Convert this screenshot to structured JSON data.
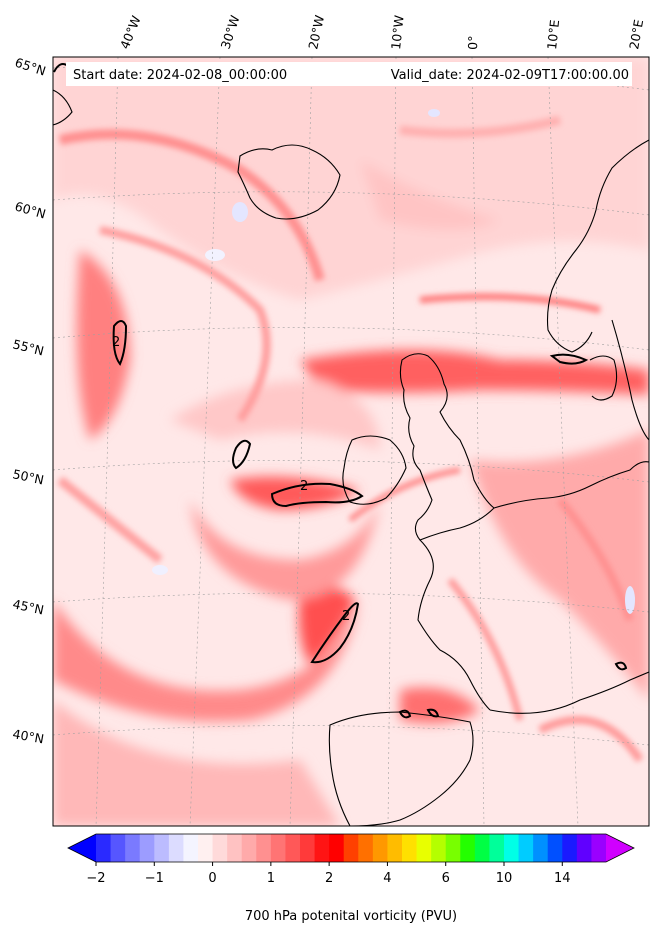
{
  "header": {
    "start_date": "Start date: 2024-02-08_00:00:00",
    "valid_date": "Valid_date: 2024-02-09T17:00:00.00"
  },
  "lon_labels": [
    "40°W",
    "30°W",
    "20°W",
    "10°W",
    "0°",
    "10°E",
    "20°E"
  ],
  "lat_labels": [
    "65°N",
    "60°N",
    "55°N",
    "50°N",
    "45°N",
    "40°N"
  ],
  "contour_label": "2",
  "colorbar": {
    "label": "700 hPa potenital vorticity (PVU)",
    "tick_labels": [
      "−2",
      "−1",
      "0",
      "1",
      "2",
      "4",
      "6",
      "10",
      "14"
    ],
    "colors": [
      "#0000ff",
      "#2a2aff",
      "#5656ff",
      "#7a7aff",
      "#9c9cff",
      "#bcbcff",
      "#dcdcff",
      "#f4f4ff",
      "#fff0f0",
      "#ffdada",
      "#ffc2c2",
      "#ffaaaa",
      "#ff9090",
      "#ff7474",
      "#ff5858",
      "#ff3a3a",
      "#ff1414",
      "#ff0000",
      "#ff4000",
      "#ff7000",
      "#ff9800",
      "#ffbc00",
      "#ffe000",
      "#e8ff00",
      "#b4ff00",
      "#78ff00",
      "#24ff00",
      "#00ff44",
      "#00ff9a",
      "#00ffe6",
      "#00ccff",
      "#0090ff",
      "#0050ff",
      "#1a1aff",
      "#6000ff",
      "#9a00ff",
      "#d000ff"
    ]
  }
}
